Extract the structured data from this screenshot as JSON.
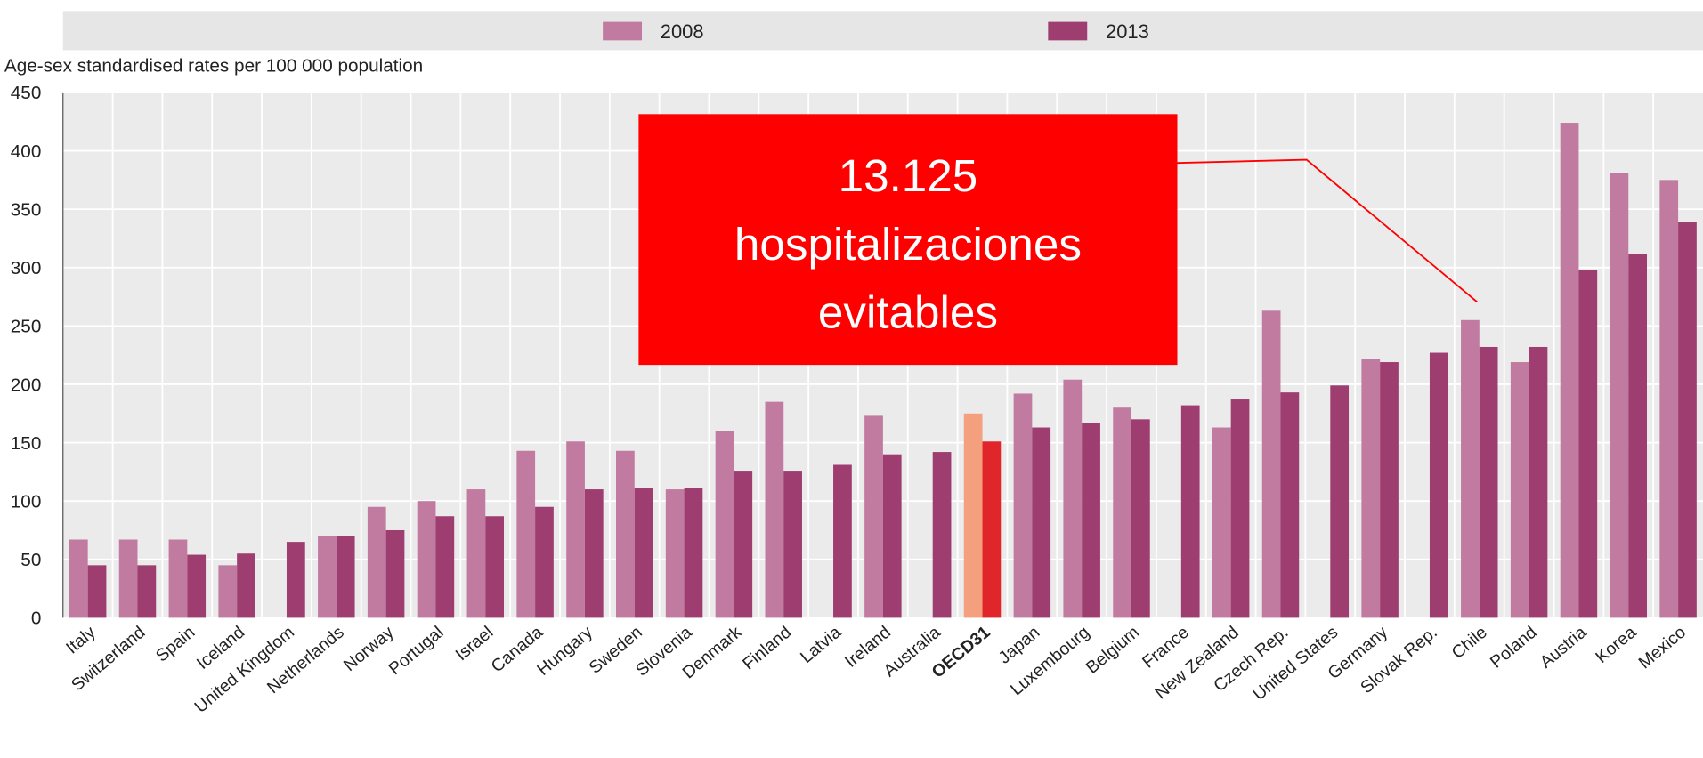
{
  "chart_data": {
    "type": "bar",
    "y_axis_label": "Age-sex standardised rates per 100 000 population",
    "categories": [
      "Italy",
      "Switzerland",
      "Spain",
      "Iceland",
      "United Kingdom",
      "Netherlands",
      "Norway",
      "Portugal",
      "Israel",
      "Canada",
      "Hungary",
      "Sweden",
      "Slovenia",
      "Denmark",
      "Finland",
      "Latvia",
      "Ireland",
      "Australia",
      "OECD31",
      "Japan",
      "Luxembourg",
      "Belgium",
      "France",
      "New Zealand",
      "Czech Rep.",
      "United States",
      "Germany",
      "Slovak Rep.",
      "Chile",
      "Poland",
      "Austria",
      "Korea",
      "Mexico"
    ],
    "series": [
      {
        "name": "2008",
        "color": "#c27ba0",
        "values": [
          67,
          67,
          67,
          45,
          null,
          70,
          95,
          100,
          110,
          143,
          151,
          143,
          110,
          160,
          185,
          null,
          173,
          null,
          175,
          192,
          204,
          180,
          null,
          163,
          263,
          null,
          222,
          null,
          255,
          219,
          424,
          381,
          375
        ]
      },
      {
        "name": "2013",
        "color": "#9e3d70",
        "values": [
          45,
          45,
          54,
          55,
          65,
          70,
          75,
          87,
          87,
          95,
          110,
          111,
          111,
          126,
          126,
          131,
          140,
          142,
          151,
          163,
          167,
          170,
          182,
          187,
          193,
          199,
          219,
          227,
          232,
          232,
          298,
          312,
          339
        ]
      }
    ],
    "highlight": {
      "category": 18,
      "colors": [
        "#f4a07e",
        "#e0262b"
      ]
    },
    "ylim": [
      0,
      450
    ],
    "yticks": [
      0,
      50,
      100,
      150,
      200,
      250,
      300,
      350,
      400,
      450
    ],
    "grid": true,
    "legend": "top",
    "annotation": {
      "lines": [
        "13.125",
        "hospitalizaciones",
        "evitables"
      ],
      "color": "#ff0000"
    }
  }
}
